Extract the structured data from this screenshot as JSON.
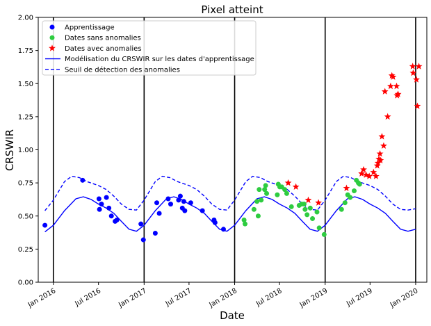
{
  "chart_data": {
    "type": "scatter",
    "title": "Pixel atteint",
    "xlabel": "Date",
    "ylabel": "CRSWIR",
    "xlim": [
      "2015-11-01",
      "2020-02-15"
    ],
    "ylim": [
      0,
      2.0
    ],
    "yticks": [
      0.0,
      0.25,
      0.5,
      0.75,
      1.0,
      1.25,
      1.5,
      1.75,
      2.0
    ],
    "ytick_labels": [
      "0.00",
      "0.25",
      "0.50",
      "0.75",
      "1.00",
      "1.25",
      "1.50",
      "1.75",
      "2.00"
    ],
    "xticks": [
      "2016-01-01",
      "2016-07-01",
      "2017-01-01",
      "2017-07-01",
      "2018-01-01",
      "2018-07-01",
      "2019-01-01",
      "2019-07-01",
      "2020-01-01"
    ],
    "xtick_labels": [
      "Jan 2016",
      "Jul 2016",
      "Jan 2017",
      "Jul 2017",
      "Jan 2018",
      "Jul 2018",
      "Jan 2019",
      "Jul 2019",
      "Jan 2020"
    ],
    "vertical_lines": [
      "2016-01-01",
      "2017-01-01",
      "2018-01-01",
      "2019-01-01",
      "2020-01-01"
    ],
    "grid": false,
    "legend_position": "top-left",
    "legend": [
      {
        "label": "Apprentissage",
        "marker": "circle",
        "color": "#0000ff"
      },
      {
        "label": "Dates sans anomalies",
        "marker": "circle",
        "color": "#2ecc40"
      },
      {
        "label": "Dates avec anomalies",
        "marker": "star",
        "color": "#ff0000"
      },
      {
        "label": "Modélisation du CRSWIR sur les dates d'apprentissage",
        "line": "solid",
        "color": "#0000ff"
      },
      {
        "label": "Seuil de détection des anomalies",
        "line": "dashed",
        "color": "#0000ff"
      }
    ],
    "series": [
      {
        "name": "Apprentissage",
        "color": "#0000ff",
        "marker": "circle",
        "points": [
          [
            "2015-11-28",
            0.43
          ],
          [
            "2016-04-28",
            0.77
          ],
          [
            "2016-07-03",
            0.63
          ],
          [
            "2016-07-05",
            0.55
          ],
          [
            "2016-07-13",
            0.59
          ],
          [
            "2016-08-02",
            0.64
          ],
          [
            "2016-08-12",
            0.56
          ],
          [
            "2016-08-22",
            0.5
          ],
          [
            "2016-09-06",
            0.46
          ],
          [
            "2016-09-13",
            0.47
          ],
          [
            "2016-12-19",
            0.44
          ],
          [
            "2016-12-29",
            0.32
          ],
          [
            "2017-02-15",
            0.37
          ],
          [
            "2017-02-21",
            0.6
          ],
          [
            "2017-03-03",
            0.52
          ],
          [
            "2017-04-08",
            0.63
          ],
          [
            "2017-04-18",
            0.59
          ],
          [
            "2017-05-20",
            0.62
          ],
          [
            "2017-05-27",
            0.65
          ],
          [
            "2017-06-04",
            0.56
          ],
          [
            "2017-06-10",
            0.61
          ],
          [
            "2017-06-14",
            0.54
          ],
          [
            "2017-07-08",
            0.6
          ],
          [
            "2017-08-24",
            0.54
          ],
          [
            "2017-10-10",
            0.47
          ],
          [
            "2017-10-14",
            0.45
          ],
          [
            "2017-11-17",
            0.4
          ]
        ]
      },
      {
        "name": "Dates sans anomalies",
        "color": "#2ecc40",
        "marker": "circle",
        "points": [
          [
            "2018-02-08",
            0.47
          ],
          [
            "2018-02-12",
            0.44
          ],
          [
            "2018-03-20",
            0.55
          ],
          [
            "2018-04-01",
            0.61
          ],
          [
            "2018-04-06",
            0.5
          ],
          [
            "2018-04-10",
            0.7
          ],
          [
            "2018-04-18",
            0.62
          ],
          [
            "2018-05-02",
            0.7
          ],
          [
            "2018-05-06",
            0.73
          ],
          [
            "2018-05-10",
            0.67
          ],
          [
            "2018-06-22",
            0.66
          ],
          [
            "2018-06-26",
            0.74
          ],
          [
            "2018-07-02",
            0.72
          ],
          [
            "2018-07-10",
            0.72
          ],
          [
            "2018-07-22",
            0.7
          ],
          [
            "2018-07-30",
            0.67
          ],
          [
            "2018-08-18",
            0.57
          ],
          [
            "2018-09-18",
            0.58
          ],
          [
            "2018-09-28",
            0.59
          ],
          [
            "2018-10-08",
            0.59
          ],
          [
            "2018-10-12",
            0.55
          ],
          [
            "2018-10-20",
            0.51
          ],
          [
            "2018-11-02",
            0.56
          ],
          [
            "2018-11-11",
            0.48
          ],
          [
            "2018-11-29",
            0.53
          ],
          [
            "2018-12-08",
            0.41
          ],
          [
            "2018-12-28",
            0.36
          ],
          [
            "2019-03-08",
            0.55
          ],
          [
            "2019-03-22",
            0.6
          ],
          [
            "2019-04-02",
            0.66
          ],
          [
            "2019-04-12",
            0.64
          ],
          [
            "2019-04-28",
            0.69
          ],
          [
            "2019-05-07",
            0.77
          ],
          [
            "2019-05-15",
            0.75
          ],
          [
            "2019-05-20",
            0.74
          ]
        ]
      },
      {
        "name": "Dates avec anomalies",
        "color": "#ff0000",
        "marker": "star",
        "points": [
          [
            "2018-08-05",
            0.75
          ],
          [
            "2018-09-05",
            0.72
          ],
          [
            "2018-10-25",
            0.62
          ],
          [
            "2018-12-05",
            0.6
          ],
          [
            "2019-03-28",
            0.71
          ],
          [
            "2019-05-28",
            0.82
          ],
          [
            "2019-06-05",
            0.85
          ],
          [
            "2019-06-15",
            0.81
          ],
          [
            "2019-06-28",
            0.8
          ],
          [
            "2019-07-15",
            0.83
          ],
          [
            "2019-07-25",
            0.8
          ],
          [
            "2019-07-30",
            0.88
          ],
          [
            "2019-08-02",
            0.9
          ],
          [
            "2019-08-06",
            0.93
          ],
          [
            "2019-08-10",
            0.97
          ],
          [
            "2019-08-12",
            0.92
          ],
          [
            "2019-08-18",
            1.1
          ],
          [
            "2019-08-25",
            1.03
          ],
          [
            "2019-08-30",
            1.44
          ],
          [
            "2019-09-10",
            1.25
          ],
          [
            "2019-09-22",
            1.48
          ],
          [
            "2019-09-27",
            1.56
          ],
          [
            "2019-10-02",
            1.55
          ],
          [
            "2019-10-16",
            1.48
          ],
          [
            "2019-10-18",
            1.41
          ],
          [
            "2019-10-22",
            1.42
          ],
          [
            "2019-12-20",
            1.63
          ],
          [
            "2019-12-22",
            1.58
          ],
          [
            "2020-01-04",
            1.53
          ],
          [
            "2020-01-08",
            1.33
          ],
          [
            "2020-01-14",
            1.63
          ]
        ]
      },
      {
        "name": "Modélisation du CRSWIR sur les dates d'apprentissage",
        "color": "#0000ff",
        "line": "solid",
        "points": [
          [
            "2015-11-28",
            0.38
          ],
          [
            "2016-01-01",
            0.43
          ],
          [
            "2016-02-15",
            0.54
          ],
          [
            "2016-04-01",
            0.63
          ],
          [
            "2016-05-01",
            0.645
          ],
          [
            "2016-06-01",
            0.625
          ],
          [
            "2016-07-01",
            0.59
          ],
          [
            "2016-08-01",
            0.56
          ],
          [
            "2016-09-01",
            0.52
          ],
          [
            "2016-10-01",
            0.46
          ],
          [
            "2016-11-01",
            0.4
          ],
          [
            "2016-12-01",
            0.385
          ],
          [
            "2017-01-01",
            0.43
          ],
          [
            "2017-02-15",
            0.54
          ],
          [
            "2017-04-01",
            0.63
          ],
          [
            "2017-05-01",
            0.645
          ],
          [
            "2017-06-01",
            0.625
          ],
          [
            "2017-07-01",
            0.59
          ],
          [
            "2017-08-01",
            0.56
          ],
          [
            "2017-09-01",
            0.52
          ],
          [
            "2017-10-01",
            0.46
          ],
          [
            "2017-11-01",
            0.4
          ],
          [
            "2017-12-01",
            0.385
          ],
          [
            "2018-01-01",
            0.43
          ],
          [
            "2018-02-15",
            0.54
          ],
          [
            "2018-04-01",
            0.63
          ],
          [
            "2018-05-01",
            0.645
          ],
          [
            "2018-06-01",
            0.625
          ],
          [
            "2018-07-01",
            0.59
          ],
          [
            "2018-08-01",
            0.56
          ],
          [
            "2018-09-01",
            0.52
          ],
          [
            "2018-10-01",
            0.46
          ],
          [
            "2018-11-01",
            0.4
          ],
          [
            "2018-12-01",
            0.385
          ],
          [
            "2019-01-01",
            0.43
          ],
          [
            "2019-02-15",
            0.54
          ],
          [
            "2019-04-01",
            0.63
          ],
          [
            "2019-05-01",
            0.645
          ],
          [
            "2019-06-01",
            0.625
          ],
          [
            "2019-07-01",
            0.59
          ],
          [
            "2019-08-01",
            0.56
          ],
          [
            "2019-09-01",
            0.52
          ],
          [
            "2019-10-01",
            0.46
          ],
          [
            "2019-11-01",
            0.4
          ],
          [
            "2019-12-01",
            0.385
          ],
          [
            "2020-01-01",
            0.4
          ]
        ]
      },
      {
        "name": "Seuil de détection des anomalies",
        "color": "#0000ff",
        "line": "dashed",
        "points": [
          [
            "2015-11-28",
            0.54
          ],
          [
            "2016-01-01",
            0.62
          ],
          [
            "2016-02-15",
            0.76
          ],
          [
            "2016-03-15",
            0.8
          ],
          [
            "2016-04-15",
            0.79
          ],
          [
            "2016-05-15",
            0.76
          ],
          [
            "2016-07-01",
            0.73
          ],
          [
            "2016-08-01",
            0.7
          ],
          [
            "2016-09-01",
            0.65
          ],
          [
            "2016-10-01",
            0.59
          ],
          [
            "2016-11-01",
            0.55
          ],
          [
            "2016-12-01",
            0.545
          ],
          [
            "2017-01-01",
            0.62
          ],
          [
            "2017-02-15",
            0.76
          ],
          [
            "2017-03-15",
            0.8
          ],
          [
            "2017-04-15",
            0.79
          ],
          [
            "2017-05-15",
            0.76
          ],
          [
            "2017-07-01",
            0.73
          ],
          [
            "2017-08-01",
            0.7
          ],
          [
            "2017-09-01",
            0.65
          ],
          [
            "2017-10-01",
            0.59
          ],
          [
            "2017-11-01",
            0.55
          ],
          [
            "2017-12-01",
            0.545
          ],
          [
            "2018-01-01",
            0.62
          ],
          [
            "2018-02-15",
            0.76
          ],
          [
            "2018-03-15",
            0.8
          ],
          [
            "2018-04-15",
            0.79
          ],
          [
            "2018-05-15",
            0.76
          ],
          [
            "2018-07-01",
            0.73
          ],
          [
            "2018-08-01",
            0.7
          ],
          [
            "2018-09-01",
            0.65
          ],
          [
            "2018-10-01",
            0.59
          ],
          [
            "2018-11-01",
            0.55
          ],
          [
            "2018-12-01",
            0.545
          ],
          [
            "2019-01-01",
            0.62
          ],
          [
            "2019-02-15",
            0.76
          ],
          [
            "2019-03-15",
            0.8
          ],
          [
            "2019-04-15",
            0.79
          ],
          [
            "2019-05-15",
            0.76
          ],
          [
            "2019-07-01",
            0.73
          ],
          [
            "2019-08-01",
            0.7
          ],
          [
            "2019-09-01",
            0.65
          ],
          [
            "2019-10-01",
            0.59
          ],
          [
            "2019-11-01",
            0.55
          ],
          [
            "2019-12-01",
            0.545
          ],
          [
            "2020-01-01",
            0.555
          ]
        ]
      }
    ]
  }
}
